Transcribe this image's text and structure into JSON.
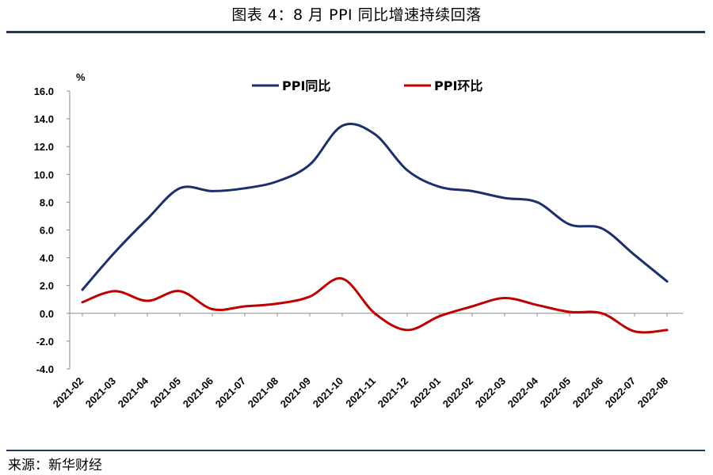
{
  "header": {
    "title": "图表 4：8 月 PPI 同比增速持续回落"
  },
  "footer": {
    "source": "来源：新华财经"
  },
  "colors": {
    "ppi_yoy": "#1b2f6b",
    "ppi_mom": "#c00000",
    "rule": "#1b3a5c"
  },
  "chart_data": {
    "type": "line",
    "title": "8 月 PPI 同比增速持续回落",
    "ylabel": "%",
    "xlabel": "",
    "ylim": [
      -4.0,
      16.0
    ],
    "yticks": [
      "16.0",
      "14.0",
      "12.0",
      "10.0",
      "8.0",
      "6.0",
      "4.0",
      "2.0",
      "0.0",
      "-2.0",
      "-4.0"
    ],
    "legend_position": "top-center",
    "categories": [
      "2021-02",
      "2021-03",
      "2021-04",
      "2021-05",
      "2021-06",
      "2021-07",
      "2021-08",
      "2021-09",
      "2021-10",
      "2021-11",
      "2021-12",
      "2022-01",
      "2022-02",
      "2022-03",
      "2022-04",
      "2022-05",
      "2022-06",
      "2022-07",
      "2022-08"
    ],
    "series": [
      {
        "name": "PPI同比",
        "color": "#1b2f6b",
        "values": [
          1.7,
          4.4,
          6.8,
          9.0,
          8.8,
          9.0,
          9.5,
          10.7,
          13.5,
          12.9,
          10.3,
          9.1,
          8.8,
          8.3,
          8.0,
          6.4,
          6.1,
          4.2,
          2.3
        ]
      },
      {
        "name": "PPI环比",
        "color": "#c00000",
        "values": [
          0.8,
          1.6,
          0.9,
          1.6,
          0.3,
          0.5,
          0.7,
          1.2,
          2.5,
          0.0,
          -1.2,
          -0.2,
          0.5,
          1.1,
          0.6,
          0.1,
          0.0,
          -1.3,
          -1.2
        ]
      }
    ]
  }
}
